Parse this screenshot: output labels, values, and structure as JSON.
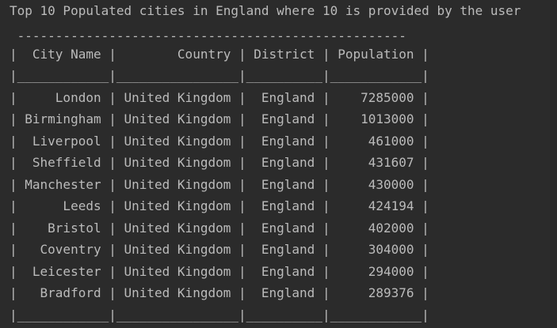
{
  "console": {
    "heading": "Top 10 Populated cities in England where 10 is provided by the user",
    "table": {
      "top_border": " ---------------------------------------------------",
      "header_row": "|  City Name |        Country | District | Population |",
      "header_separator": "|____________|________________|__________|____________|",
      "rows": [
        "|     London | United Kingdom |  England |    7285000 |",
        "| Birmingham | United Kingdom |  England |    1013000 |",
        "|  Liverpool | United Kingdom |  England |     461000 |",
        "|  Sheffield | United Kingdom |  England |     431607 |",
        "| Manchester | United Kingdom |  England |     430000 |",
        "|      Leeds | United Kingdom |  England |     424194 |",
        "|    Bristol | United Kingdom |  England |     402000 |",
        "|   Coventry | United Kingdom |  England |     304000 |",
        "|  Leicester | United Kingdom |  England |     294000 |",
        "|   Bradford | United Kingdom |  England |     289376 |"
      ],
      "bottom_border": "|____________|________________|__________|____________|"
    }
  }
}
